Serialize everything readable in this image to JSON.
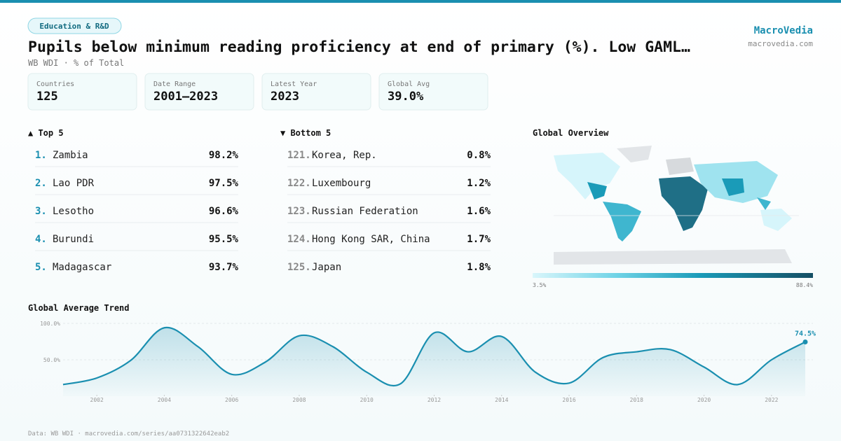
{
  "header": {
    "tag": "Education & R&D",
    "title": "Pupils below minimum reading proficiency at end of primary (%). Low GAML…",
    "subtitle": "WB WDI · % of Total",
    "brand": "MacroVedia",
    "site": "macrovedia.com"
  },
  "stats": [
    {
      "label": "Countries",
      "value": "125"
    },
    {
      "label": "Date Range",
      "value": "2001–2023"
    },
    {
      "label": "Latest Year",
      "value": "2023"
    },
    {
      "label": "Global Avg",
      "value": "39.0%"
    }
  ],
  "top5": {
    "heading": "▲ Top 5",
    "rows": [
      {
        "rank": "1.",
        "name": "Zambia",
        "value": "98.2%"
      },
      {
        "rank": "2.",
        "name": "Lao PDR",
        "value": "97.5%"
      },
      {
        "rank": "3.",
        "name": "Lesotho",
        "value": "96.6%"
      },
      {
        "rank": "4.",
        "name": "Burundi",
        "value": "95.5%"
      },
      {
        "rank": "5.",
        "name": "Madagascar",
        "value": "93.7%"
      }
    ]
  },
  "bottom5": {
    "heading": "▼ Bottom 5",
    "rows": [
      {
        "rank": "121.",
        "name": "Korea, Rep.",
        "value": "0.8%"
      },
      {
        "rank": "122.",
        "name": "Luxembourg",
        "value": "1.2%"
      },
      {
        "rank": "123.",
        "name": "Russian Federation",
        "value": "1.6%"
      },
      {
        "rank": "124.",
        "name": "Hong Kong SAR, China",
        "value": "1.7%"
      },
      {
        "rank": "125.",
        "name": "Japan",
        "value": "1.8%"
      }
    ]
  },
  "map": {
    "title": "Global Overview",
    "legend_min": "3.5%",
    "legend_max": "88.4%"
  },
  "chart_data": {
    "type": "line",
    "title": "Global Average Trend",
    "x": [
      2001,
      2002,
      2003,
      2004,
      2005,
      2006,
      2007,
      2008,
      2009,
      2010,
      2011,
      2012,
      2013,
      2014,
      2015,
      2016,
      2017,
      2018,
      2019,
      2020,
      2021,
      2022,
      2023
    ],
    "values": [
      16,
      25,
      49,
      94,
      68,
      30,
      47,
      83,
      68,
      33,
      17,
      87,
      61,
      82,
      33,
      18,
      53,
      61,
      64,
      40,
      16,
      50,
      74.5
    ],
    "value_labels": [
      null,
      null,
      null,
      null,
      null,
      null,
      null,
      null,
      null,
      null,
      null,
      null,
      null,
      null,
      null,
      null,
      null,
      null,
      null,
      null,
      null,
      null,
      "74.5%"
    ],
    "color": "#1a8fb0",
    "xlim": [
      2001,
      2023
    ],
    "xticks": [
      2002,
      2004,
      2006,
      2008,
      2010,
      2012,
      2014,
      2016,
      2018,
      2020,
      2022
    ],
    "ylim": [
      0,
      100
    ],
    "yticks": [
      {
        "value": 50,
        "label": "50.0%"
      },
      {
        "value": 100,
        "label": "100.0%"
      }
    ],
    "grid": true
  },
  "footer": {
    "source": "Data: WB WDI · macrovedia.com/series/aa0731322642eab2"
  }
}
